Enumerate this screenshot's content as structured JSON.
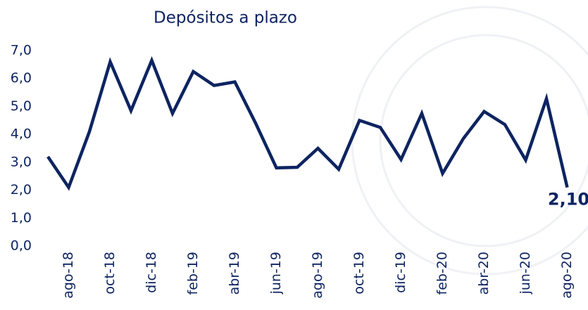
{
  "chart_data": {
    "type": "line",
    "title": "Depósitos a plazo",
    "categories": [
      null,
      "ago-18",
      null,
      "oct-18",
      null,
      "dic-18",
      null,
      "feb-19",
      null,
      "abr-19",
      null,
      "jun-19",
      null,
      "ago-19",
      null,
      "oct-19",
      null,
      "dic-19",
      null,
      "feb-20",
      null,
      "abr-20",
      null,
      "jun-20",
      null,
      "ago-20"
    ],
    "series": [
      {
        "name": "Depósitos a plazo",
        "color": "#0e2461",
        "values": [
          3.2,
          2.1,
          4.1,
          6.6,
          4.85,
          6.65,
          4.75,
          6.25,
          5.75,
          5.88,
          4.4,
          2.8,
          2.82,
          3.5,
          2.75,
          4.5,
          4.25,
          3.1,
          4.75,
          2.6,
          3.85,
          4.82,
          4.35,
          3.08,
          5.28,
          2.1
        ],
        "value_labels": [
          null,
          null,
          null,
          null,
          null,
          null,
          null,
          null,
          null,
          null,
          null,
          null,
          null,
          null,
          null,
          null,
          null,
          null,
          null,
          null,
          null,
          null,
          null,
          null,
          null,
          "2,10"
        ]
      }
    ],
    "ylim": [
      0,
      7
    ],
    "yticks": [
      {
        "value": 0,
        "label": "0,0"
      },
      {
        "value": 1,
        "label": "1,0"
      },
      {
        "value": 2,
        "label": "2,0"
      },
      {
        "value": 3,
        "label": "3,0"
      },
      {
        "value": 4,
        "label": "4,0"
      },
      {
        "value": 5,
        "label": "5,0"
      },
      {
        "value": 6,
        "label": "6,0"
      },
      {
        "value": 7,
        "label": "7,0"
      }
    ],
    "grid": false
  }
}
